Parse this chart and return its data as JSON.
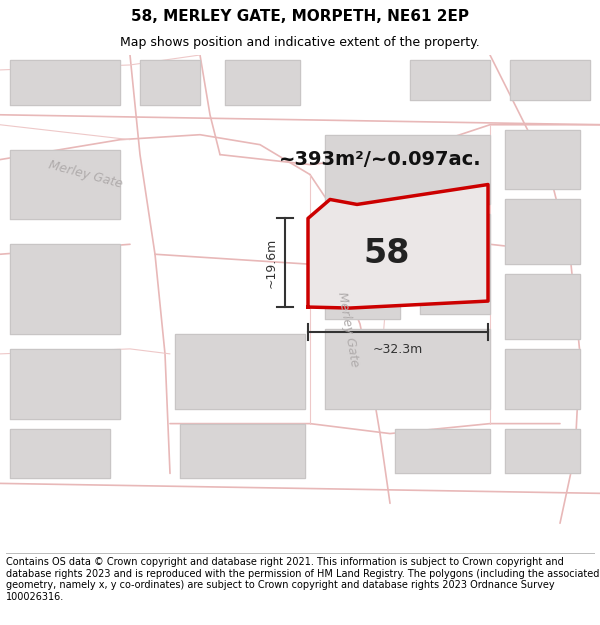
{
  "title": "58, MERLEY GATE, MORPETH, NE61 2EP",
  "subtitle": "Map shows position and indicative extent of the property.",
  "footer": "Contains OS data © Crown copyright and database right 2021. This information is subject to Crown copyright and database rights 2023 and is reproduced with the permission of HM Land Registry. The polygons (including the associated geometry, namely x, y co-ordinates) are subject to Crown copyright and database rights 2023 Ordnance Survey 100026316.",
  "area_label": "~393m²/~0.097ac.",
  "number_label": "58",
  "dim_vertical": "~19.6m",
  "dim_horizontal": "~32.3m",
  "street_label_merley_left": "Merley Gate",
  "street_label_merley_center": "Merley Gate",
  "map_bg": "#f2f0f0",
  "road_color": "#e8b8b8",
  "road_color_light": "#eec8c8",
  "block_color": "#d8d5d5",
  "block_outline": "#c8c5c5",
  "property_color": "#cc0000",
  "property_fill": "#ebe7e7",
  "dim_color": "#333333",
  "text_color": "#333333",
  "street_color": "#b0acac",
  "title_fontsize": 11,
  "subtitle_fontsize": 9,
  "footer_fontsize": 7,
  "area_fontsize": 14,
  "number_fontsize": 24,
  "dim_fontsize": 9,
  "street_fontsize": 9
}
